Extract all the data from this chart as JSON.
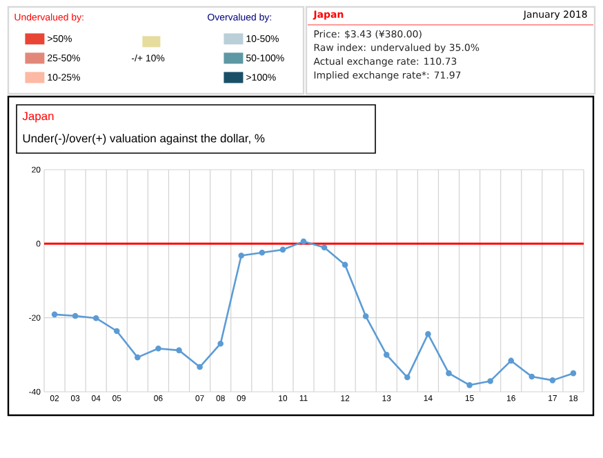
{
  "chart_data": {
    "type": "line",
    "title": "Japan",
    "subtitle": "Under(-)/over(+) valuation against the dollar, %",
    "categories": [
      "02",
      "03",
      "04",
      "05",
      null,
      "06",
      null,
      "07",
      "08",
      "09",
      null,
      "10",
      "11",
      null,
      "12",
      null,
      "13",
      null,
      "14",
      null,
      "15",
      null,
      "16",
      null,
      "17",
      "18"
    ],
    "series": [
      {
        "color": "#5b9bd5",
        "values": [
          -19.1,
          -19.5,
          -20.1,
          -23.6,
          -30.7,
          -28.3,
          -28.8,
          -33.3,
          -27.0,
          -3.2,
          -2.4,
          -1.6,
          0.6,
          -1.0,
          -5.7,
          -19.6,
          -30.0,
          -36.1,
          -24.4,
          -35.0,
          -38.2,
          -37.1,
          -31.6,
          -35.9,
          -36.9,
          -35.0
        ]
      }
    ],
    "ylim": [
      -40,
      20
    ],
    "yticks": [
      -40,
      -20,
      0,
      20
    ],
    "grid": true,
    "marker": "circle",
    "line_style": "solid",
    "ref_lines": [
      {
        "axis": "y",
        "value": 0,
        "color": "#ff0000"
      }
    ],
    "annotations": [
      "Undervalued by:",
      ">50%",
      "25-50%",
      "10-25%",
      "-/+ 10%",
      "Overvalued by:",
      "10-50%",
      "50-100%",
      ">100%",
      "Japan",
      "January 2018",
      "Price: $3.43 (¥380.00)",
      "Raw index: undervalued by 35.0%",
      "Actual exchange rate: 110.73",
      "Implied exchange rate*: 71.97"
    ]
  }
}
